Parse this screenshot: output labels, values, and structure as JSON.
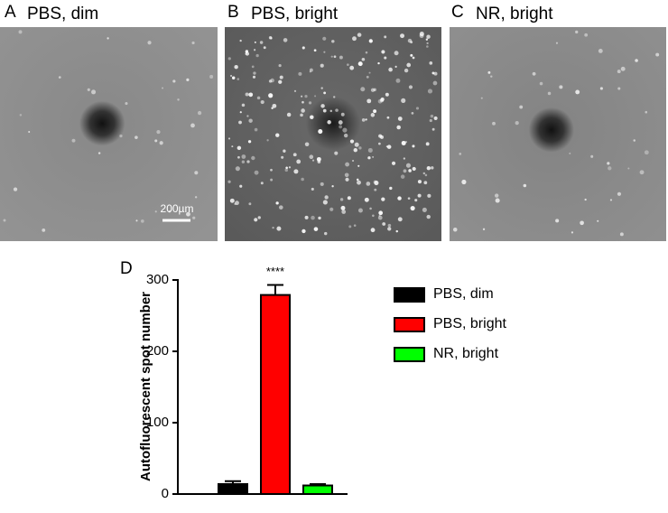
{
  "panels": [
    {
      "letter": "A",
      "title": "PBS, dim",
      "scale_bar": "200µm"
    },
    {
      "letter": "B",
      "title": "PBS, bright"
    },
    {
      "letter": "C",
      "title": "NR, bright"
    }
  ],
  "chart_data": {
    "type": "bar",
    "panel_letter": "D",
    "y_label": "Autofluorescent spot number",
    "annotation": "****",
    "categories": [
      null
    ],
    "series": [
      {
        "name": "PBS, dim",
        "color": "#000000",
        "values": [
          14
        ],
        "errors": [
          4
        ]
      },
      {
        "name": "PBS, bright",
        "color": "#ff0000",
        "values": [
          279
        ],
        "errors": [
          14
        ]
      },
      {
        "name": "NR, bright",
        "color": "#00ff00",
        "values": [
          12
        ],
        "errors": [
          2
        ]
      }
    ],
    "ylim": [
      0,
      300
    ],
    "yticks": [
      0,
      100,
      200,
      300
    ],
    "legend": "right"
  }
}
